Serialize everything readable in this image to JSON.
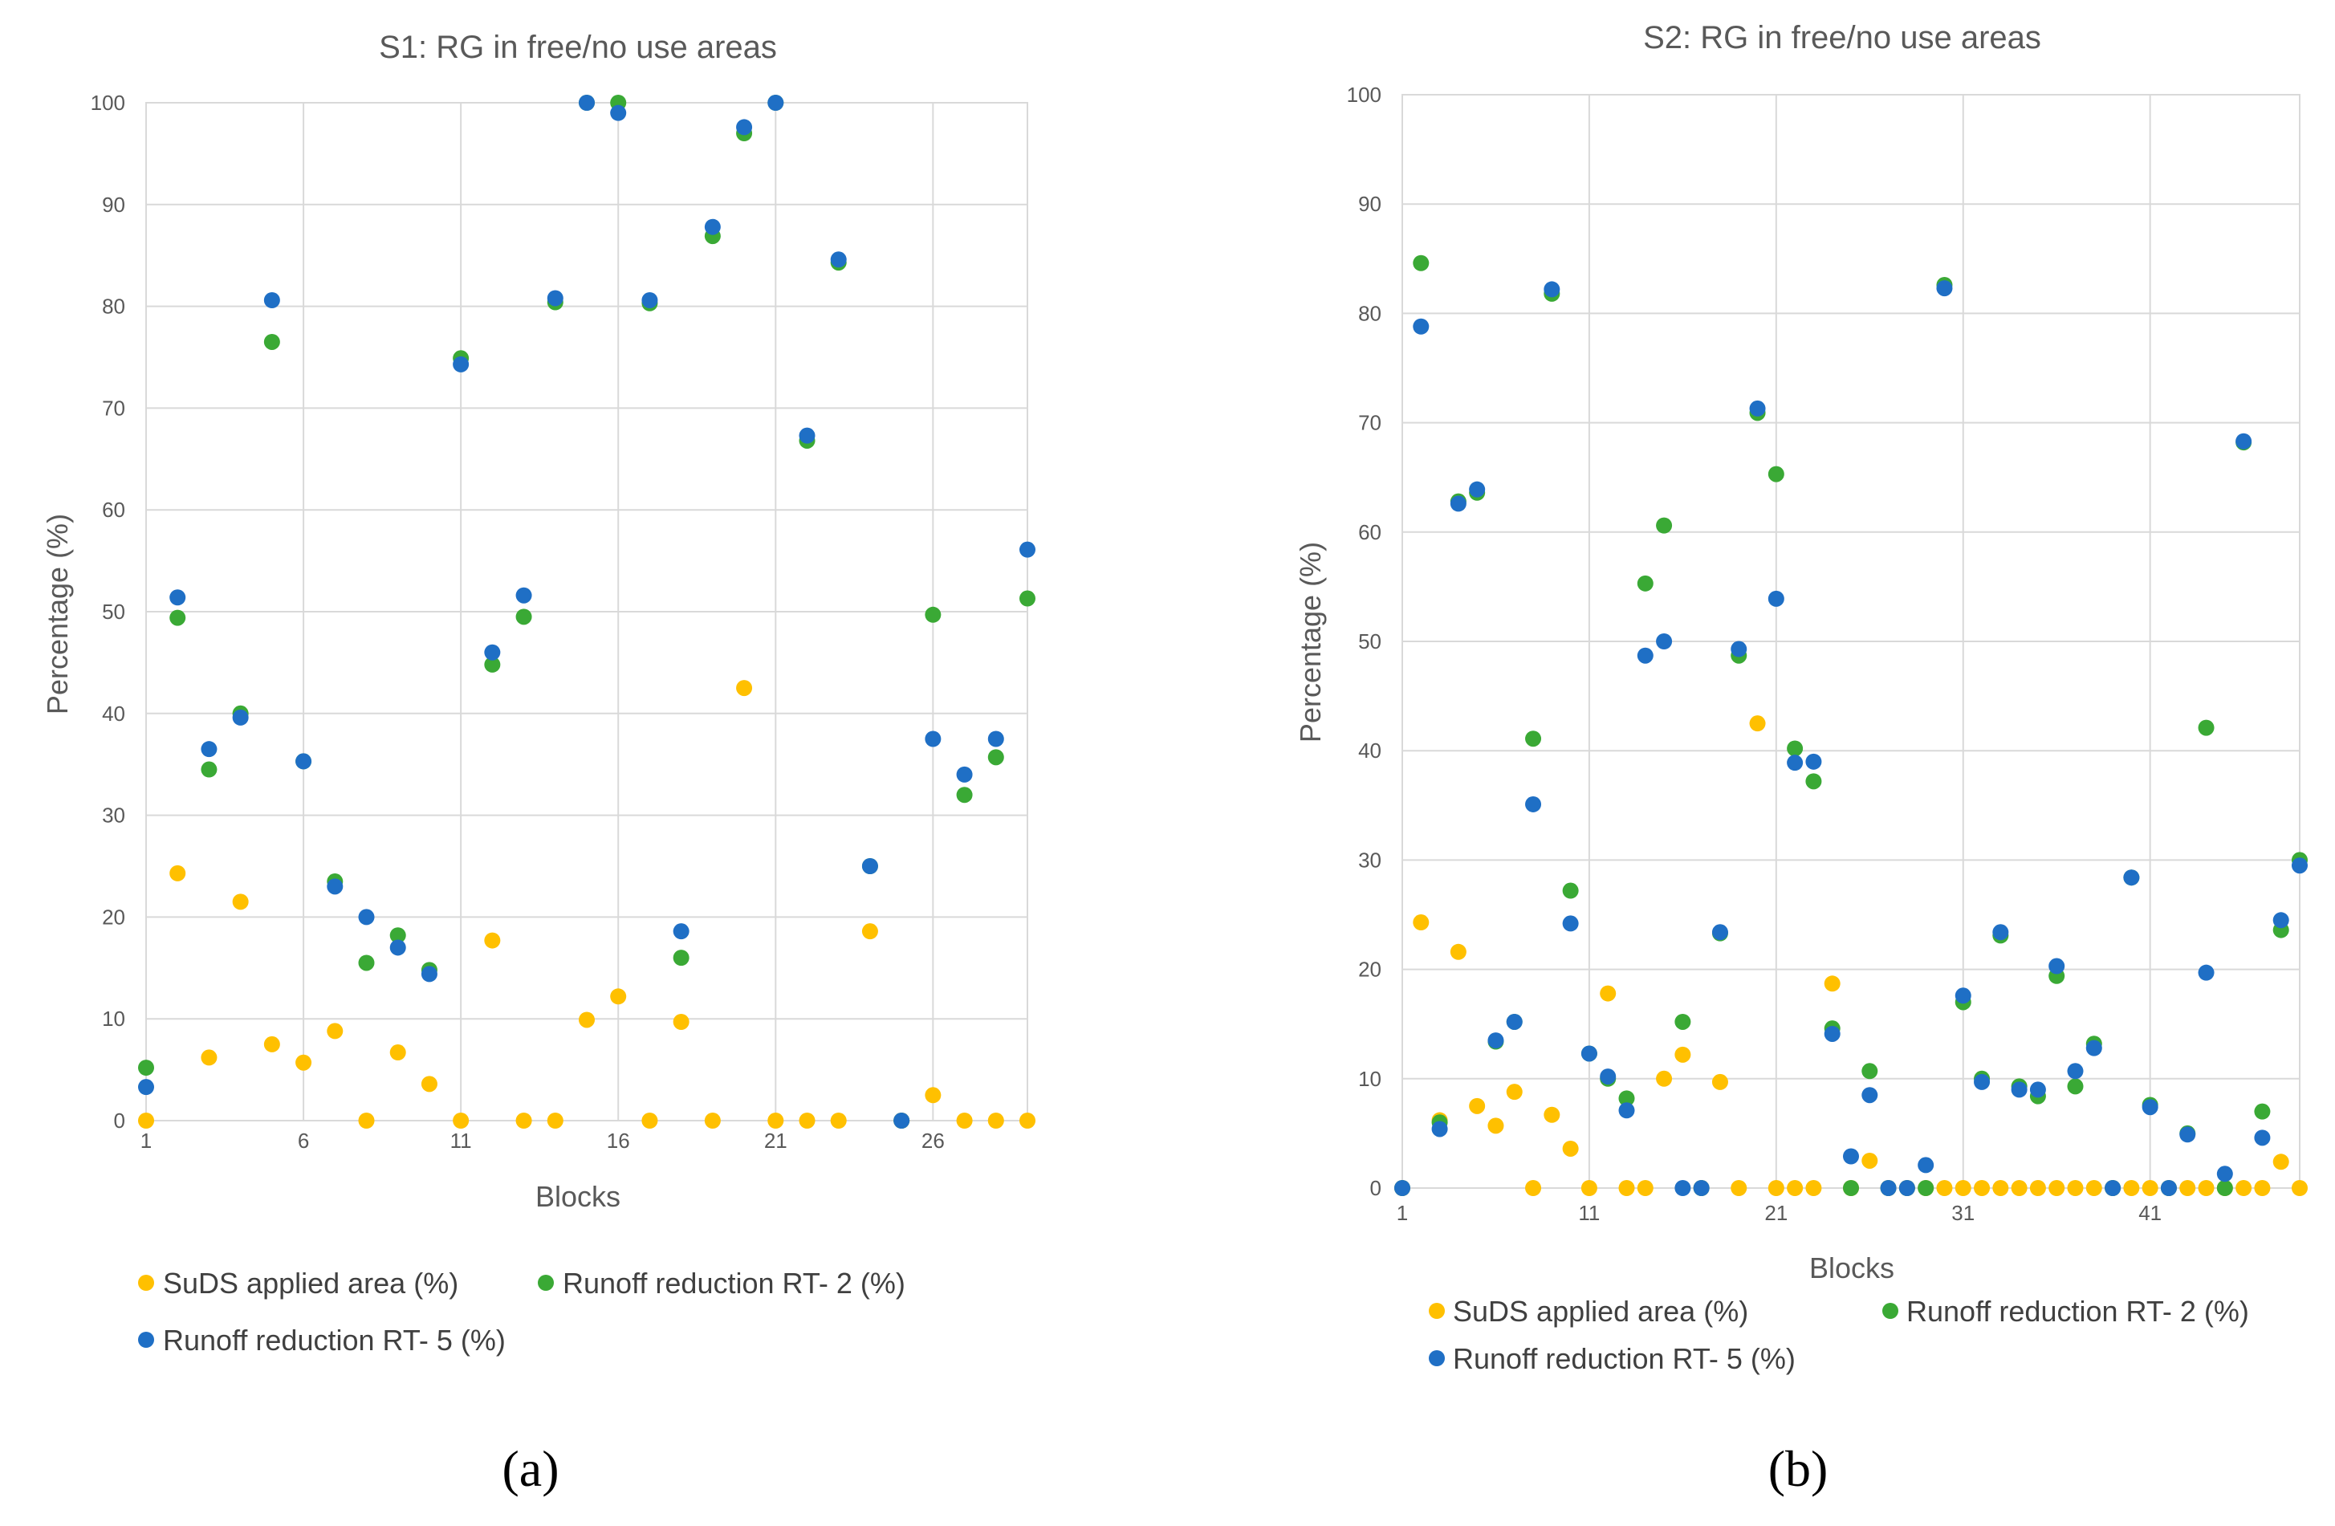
{
  "colors": {
    "suds": "#FFC000",
    "rt2": "#3AA935",
    "rt5": "#1F6FC5"
  },
  "chart_data": [
    {
      "type": "scatter",
      "title": "S1: RG in free/no use areas",
      "xlabel": "Blocks",
      "ylabel": "Percentage (%)",
      "caption_letter": "a",
      "xlim": [
        1,
        29
      ],
      "ylim": [
        0,
        100
      ],
      "xticks": [
        1,
        6,
        11,
        16,
        21,
        26
      ],
      "yticks": [
        0,
        10,
        20,
        30,
        40,
        50,
        60,
        70,
        80,
        90,
        100
      ],
      "x": [
        1,
        2,
        3,
        4,
        5,
        6,
        7,
        8,
        9,
        10,
        11,
        12,
        13,
        14,
        15,
        16,
        17,
        18,
        19,
        20,
        21,
        22,
        23,
        24,
        25,
        26,
        27,
        28,
        29
      ],
      "series": [
        {
          "name": "SuDS applied area (%)",
          "key": "suds",
          "values": [
            0,
            24.3,
            6.2,
            21.5,
            7.5,
            5.7,
            8.8,
            0,
            6.7,
            3.6,
            0,
            17.7,
            0,
            0,
            9.9,
            12.2,
            0,
            9.7,
            0,
            42.5,
            0,
            0,
            0,
            18.6,
            0,
            2.5,
            0,
            0,
            0
          ]
        },
        {
          "name": "Runoff reduction RT- 2 (%)",
          "key": "rt2",
          "values": [
            5.2,
            49.4,
            34.5,
            40,
            76.5,
            35.3,
            23.5,
            15.5,
            18.2,
            14.8,
            74.9,
            44.8,
            49.5,
            80.4,
            100,
            100,
            80.3,
            16,
            86.9,
            97,
            100,
            66.8,
            84.3,
            25,
            0,
            49.7,
            32,
            35.7,
            51.3
          ]
        },
        {
          "name": "Runoff reduction RT- 5 (%)",
          "key": "rt5",
          "values": [
            3.3,
            51.4,
            36.5,
            39.6,
            80.6,
            35.3,
            23,
            20,
            17,
            14.4,
            74.3,
            46,
            51.6,
            80.8,
            100,
            99,
            80.6,
            18.6,
            87.8,
            97.6,
            100,
            67.3,
            84.6,
            25,
            0,
            37.5,
            34,
            37.5,
            56.1
          ]
        }
      ]
    },
    {
      "type": "scatter",
      "title": "S2: RG in free/no use areas",
      "xlabel": "Blocks",
      "ylabel": "Percentage (%)",
      "caption_letter": "b",
      "xlim": [
        1,
        49
      ],
      "ylim": [
        0,
        100
      ],
      "xticks": [
        1,
        11,
        21,
        31,
        41
      ],
      "yticks": [
        0,
        10,
        20,
        30,
        40,
        50,
        60,
        70,
        80,
        90,
        100
      ],
      "x": [
        1,
        2,
        3,
        4,
        5,
        6,
        7,
        8,
        9,
        10,
        11,
        12,
        13,
        14,
        15,
        16,
        17,
        18,
        19,
        20,
        21,
        22,
        23,
        24,
        25,
        26,
        27,
        28,
        29,
        30,
        31,
        32,
        33,
        34,
        35,
        36,
        37,
        38,
        39,
        40,
        41,
        42,
        43,
        44,
        45,
        46,
        47,
        48,
        49
      ],
      "series": [
        {
          "name": "SuDS applied area (%)",
          "key": "suds",
          "values": [
            0,
            24.3,
            6.2,
            21.6,
            7.5,
            5.7,
            8.8,
            0,
            6.7,
            3.6,
            0,
            17.8,
            0,
            0,
            10,
            12.2,
            0,
            9.7,
            0,
            42.5,
            0,
            0,
            0,
            18.7,
            0,
            2.5,
            0,
            0,
            0,
            0,
            0,
            0,
            0,
            0,
            0,
            0,
            0,
            0,
            0,
            0,
            0,
            0,
            0,
            0,
            0,
            0,
            0,
            2.4,
            0
          ]
        },
        {
          "name": "Runoff reduction RT- 2 (%)",
          "key": "rt2",
          "values": [
            0,
            84.6,
            6,
            62.8,
            63.6,
            13.4,
            15.2,
            41.1,
            81.8,
            27.2,
            12.3,
            10,
            8.2,
            55.3,
            60.6,
            15.2,
            0,
            23.3,
            48.7,
            70.9,
            65.3,
            40.2,
            37.2,
            14.6,
            0,
            10.7,
            0,
            0,
            0,
            82.6,
            17,
            10,
            23.1,
            9.3,
            8.4,
            19.4,
            9.3,
            13.2,
            0,
            28.4,
            7.6,
            0,
            5,
            42.1,
            0,
            68.2,
            7,
            23.6,
            30
          ]
        },
        {
          "name": "Runoff reduction RT- 5 (%)",
          "key": "rt5",
          "values": [
            0,
            78.8,
            5.4,
            62.6,
            63.9,
            13.5,
            15.2,
            35.1,
            82.2,
            24.2,
            12.3,
            10.2,
            7.1,
            48.7,
            50,
            0,
            0,
            23.4,
            49.3,
            71.3,
            53.9,
            38.9,
            39,
            14.1,
            2.9,
            8.5,
            0,
            0,
            2.1,
            82.3,
            17.6,
            9.7,
            23.4,
            9,
            9,
            20.3,
            10.7,
            12.8,
            0,
            28.4,
            7.4,
            0,
            4.9,
            19.7,
            1.3,
            68.3,
            4.6,
            24.5,
            29.5
          ]
        }
      ]
    }
  ],
  "captions": [
    "(a)",
    "(b)"
  ]
}
